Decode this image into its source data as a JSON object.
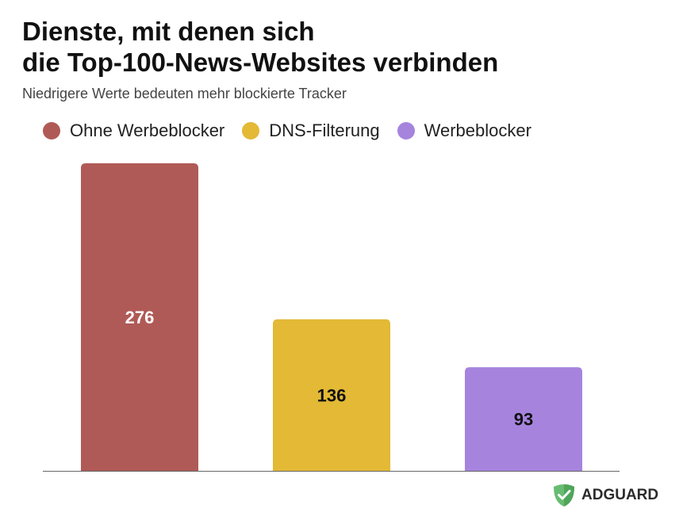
{
  "chart_data": {
    "type": "bar",
    "title": "Dienste, mit denen sich die Top-100-News-Websites verbinden",
    "title_lines": [
      "Dienste, mit denen sich",
      "die Top-100-News-Websites verbinden"
    ],
    "subtitle": "Niedrigere Werte bedeuten mehr blockierte Tracker",
    "categories": [
      "Ohne Werbeblocker",
      "DNS-Filterung",
      "Werbeblocker"
    ],
    "values": [
      276,
      136,
      93
    ],
    "colors": [
      "#b05a57",
      "#e3b935",
      "#a684de"
    ],
    "label_colors": [
      "#ffffff",
      "#111111",
      "#111111"
    ],
    "xlabel": "",
    "ylabel": "",
    "ylim": [
      0,
      276
    ],
    "grid": false,
    "legend_position": "top-left"
  },
  "brand": {
    "name": "ADGUARD",
    "shield_color": "#68bc71",
    "shield_dark": "#4fa55a"
  }
}
